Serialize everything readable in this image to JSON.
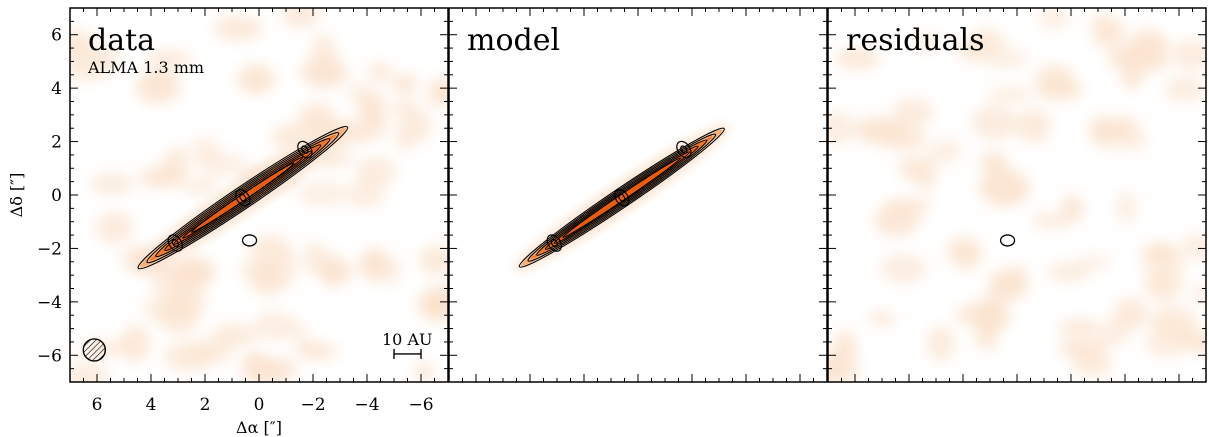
{
  "figure": {
    "instrument_label": "ALMA 1.3 mm",
    "scale_bar_label": "10 AU",
    "xlabel": "Δα [″]",
    "ylabel": "Δδ [″]"
  },
  "chart_data": [
    {
      "type": "heatmap",
      "title": "data",
      "xlim": [
        7,
        -7
      ],
      "ylim": [
        -7,
        7
      ],
      "x_ticks": [
        6,
        4,
        2,
        0,
        -2,
        -4,
        -6
      ],
      "y_ticks": [
        -6,
        -4,
        -2,
        0,
        2,
        4,
        6
      ],
      "colormap": [
        "#ffffff",
        "#fbe3cf",
        "#f5b178",
        "#ee7a2a",
        "#e85d0a"
      ],
      "contour_color": "#000000",
      "disk": {
        "center": [
          0.6,
          -0.1
        ],
        "position_angle_deg": 56,
        "semi_major_arcsec": 4.6,
        "semi_minor_arcsec": 0.33
      },
      "peaks": [
        {
          "x": 0.6,
          "y": -0.1
        },
        {
          "x": -1.7,
          "y": 1.7
        },
        {
          "x": 3.1,
          "y": -1.8
        }
      ],
      "extra_contours": [
        {
          "x": 0.35,
          "y": -1.7
        }
      ],
      "beam": {
        "x": 6.1,
        "y": -5.8
      },
      "scale_bar": {
        "x_from": -5.0,
        "x_to": -6.0,
        "y": -5.95
      }
    },
    {
      "type": "heatmap",
      "title": "model",
      "xlim": [
        7,
        -7
      ],
      "ylim": [
        -7,
        7
      ],
      "colormap": [
        "#ffffff",
        "#fbe3cf",
        "#f5b178",
        "#ee7a2a",
        "#e85d0a"
      ],
      "contour_color": "#000000",
      "disk": {
        "center": [
          0.6,
          -0.1
        ],
        "position_angle_deg": 56,
        "semi_major_arcsec": 4.5,
        "semi_minor_arcsec": 0.28
      },
      "peaks": [
        {
          "x": 0.6,
          "y": -0.1
        },
        {
          "x": -1.7,
          "y": 1.7
        },
        {
          "x": 3.1,
          "y": -1.8
        }
      ]
    },
    {
      "type": "heatmap",
      "title": "residuals",
      "xlim": [
        7,
        -7
      ],
      "ylim": [
        -7,
        7
      ],
      "colormap": [
        "#ffffff",
        "#fbe3cf"
      ],
      "contour_color": "#000000",
      "extra_contours": [
        {
          "x": 0.35,
          "y": -1.7
        }
      ]
    }
  ]
}
